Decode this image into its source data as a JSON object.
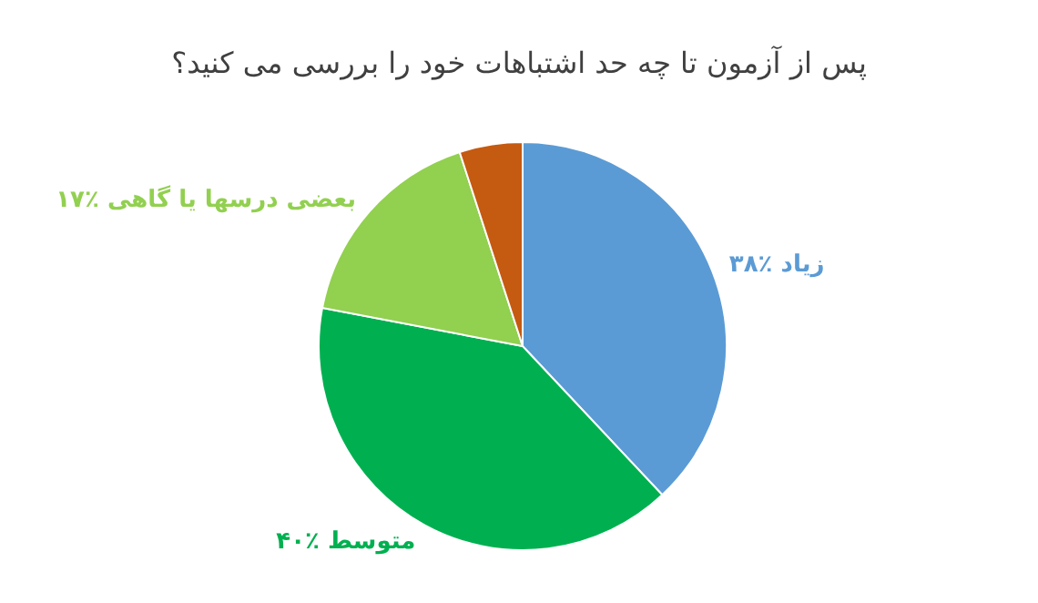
{
  "chart_data": {
    "type": "pie",
    "title": "پس از آزمون تا چه حد اشتباهات خود را بررسی می کنید؟",
    "categories": [
      "زیاد",
      "متوسط",
      "بعضی درسها یا گاهی",
      null
    ],
    "values": [
      38,
      40,
      17,
      5
    ],
    "value_labels": [
      "٪۳۸",
      "٪۴۰",
      "٪۱۷",
      null
    ],
    "colors": [
      "#5b9bd5",
      "#00b050",
      "#92d050",
      "#c55a11"
    ]
  }
}
